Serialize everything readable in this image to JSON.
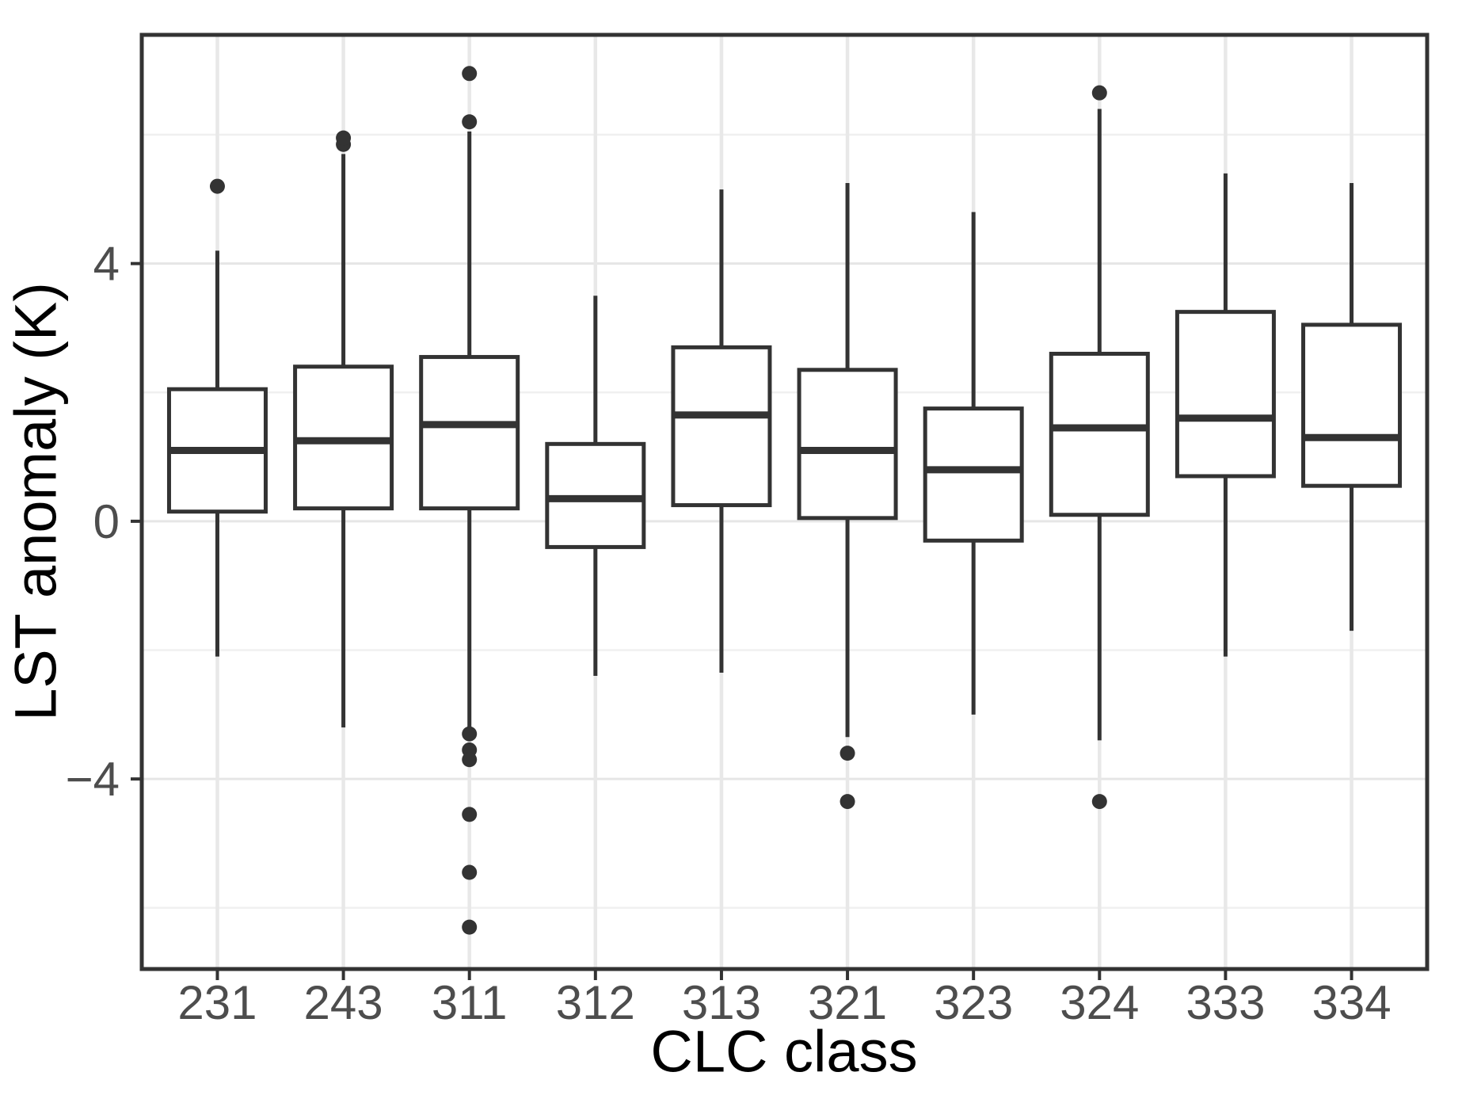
{
  "chart_data": {
    "type": "boxplot",
    "title": "",
    "xlabel": "CLC class",
    "ylabel": "LST anomaly (K)",
    "categories": [
      "231",
      "243",
      "311",
      "312",
      "313",
      "321",
      "323",
      "324",
      "333",
      "334"
    ],
    "y_axis": {
      "tick_values": [
        4,
        0,
        -4
      ],
      "tick_labels": [
        "4",
        "0",
        "−4"
      ],
      "minor_gridlines": [
        6,
        2,
        -2,
        -6
      ],
      "ylim": [
        -6.95,
        7.55
      ]
    },
    "grid": true,
    "legend": false,
    "series": [
      {
        "category": "231",
        "lower_whisker": -2.1,
        "q1": 0.15,
        "median": 1.1,
        "q3": 2.05,
        "upper_whisker": 4.2,
        "outliers": [
          5.2
        ]
      },
      {
        "category": "243",
        "lower_whisker": -3.2,
        "q1": 0.2,
        "median": 1.25,
        "q3": 2.4,
        "upper_whisker": 5.7,
        "outliers": [
          5.85,
          5.95
        ]
      },
      {
        "category": "311",
        "lower_whisker": -3.2,
        "q1": 0.2,
        "median": 1.5,
        "q3": 2.55,
        "upper_whisker": 6.05,
        "outliers": [
          6.2,
          6.95,
          -3.3,
          -3.55,
          -3.7,
          -4.55,
          -5.45,
          -6.3
        ]
      },
      {
        "category": "312",
        "lower_whisker": -2.4,
        "q1": -0.4,
        "median": 0.35,
        "q3": 1.2,
        "upper_whisker": 3.5,
        "outliers": []
      },
      {
        "category": "313",
        "lower_whisker": -2.35,
        "q1": 0.25,
        "median": 1.65,
        "q3": 2.7,
        "upper_whisker": 5.15,
        "outliers": []
      },
      {
        "category": "321",
        "lower_whisker": -3.35,
        "q1": 0.05,
        "median": 1.1,
        "q3": 2.35,
        "upper_whisker": 5.25,
        "outliers": [
          -3.6,
          -4.35
        ]
      },
      {
        "category": "323",
        "lower_whisker": -3.0,
        "q1": -0.3,
        "median": 0.8,
        "q3": 1.75,
        "upper_whisker": 4.8,
        "outliers": []
      },
      {
        "category": "324",
        "lower_whisker": -3.4,
        "q1": 0.1,
        "median": 1.45,
        "q3": 2.6,
        "upper_whisker": 6.4,
        "outliers": [
          6.65,
          -4.35
        ]
      },
      {
        "category": "333",
        "lower_whisker": -2.1,
        "q1": 0.7,
        "median": 1.6,
        "q3": 3.25,
        "upper_whisker": 5.4,
        "outliers": []
      },
      {
        "category": "334",
        "lower_whisker": -1.7,
        "q1": 0.55,
        "median": 1.3,
        "q3": 3.05,
        "upper_whisker": 5.25,
        "outliers": []
      }
    ],
    "colors": {
      "box_stroke": "#333333",
      "box_fill": "#ffffff",
      "outlier": "#333333",
      "grid_major": "#e6e6e6",
      "grid_minor": "#f0f0f0",
      "grid_vertical": "#e8e8e8",
      "panel_border": "#333333",
      "tick_mark": "#333333",
      "tick_label": "#4d4d4d",
      "axis_title": "#000000",
      "background": "#ffffff"
    }
  }
}
